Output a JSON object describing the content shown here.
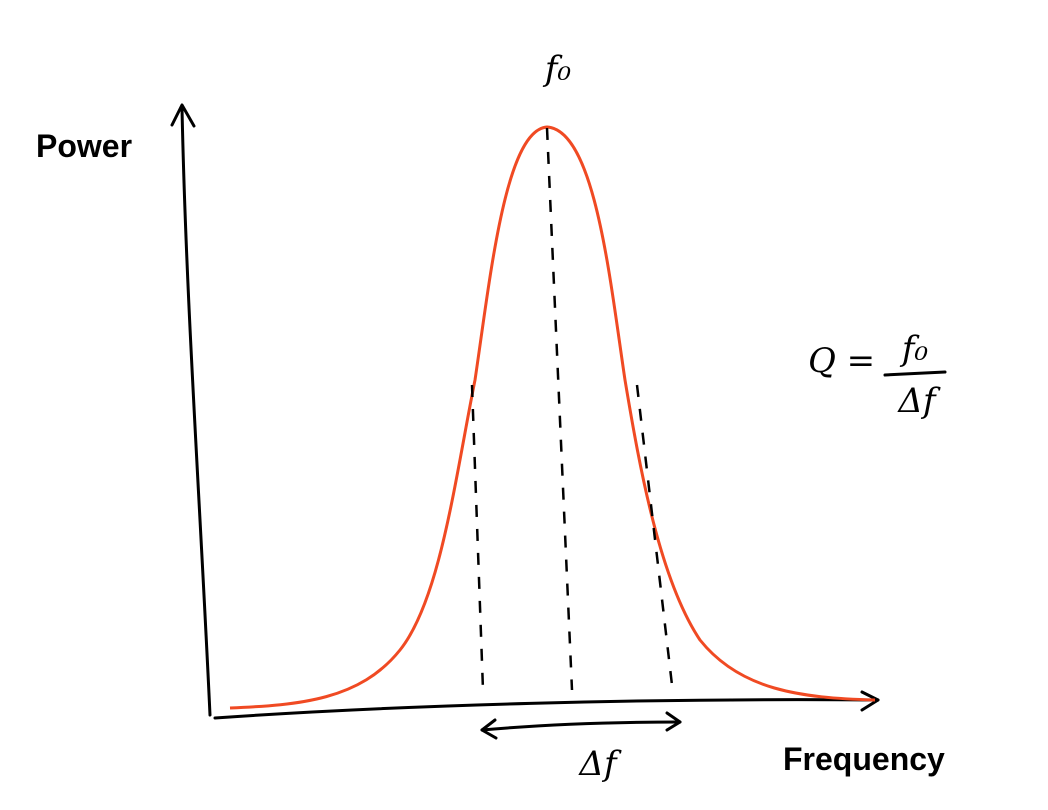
{
  "axes": {
    "y_label": "Power",
    "x_label": "Frequency"
  },
  "annotations": {
    "peak": "f₀",
    "bandwidth": "Δf"
  },
  "formula": {
    "lhs": "Q =",
    "numerator": "f₀",
    "denominator": "Δf"
  }
}
